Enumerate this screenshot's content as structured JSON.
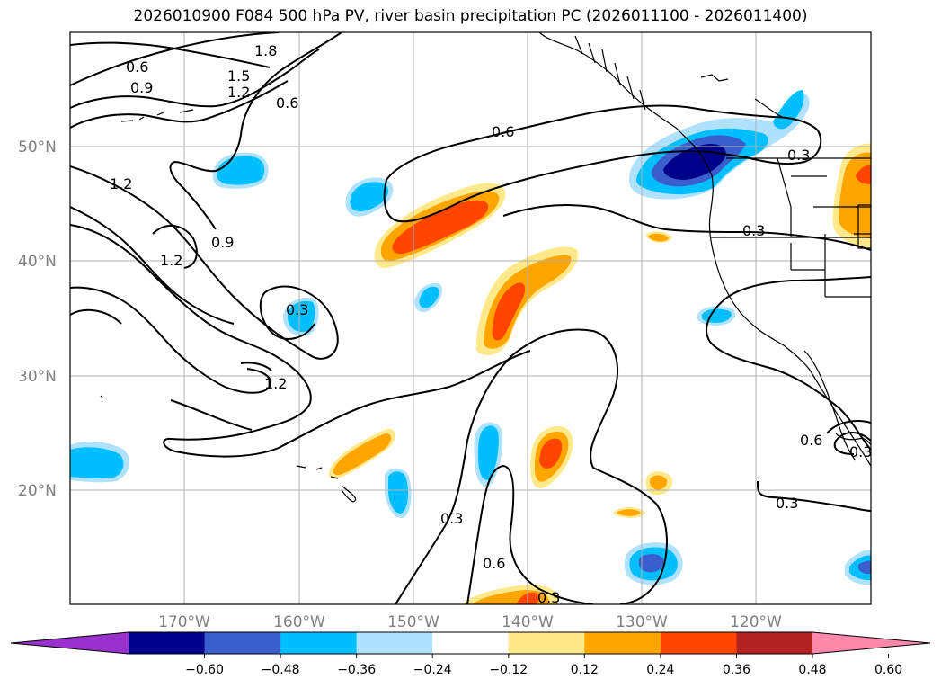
{
  "title": "2026010900 F084 500 hPa PV, river basin precipitation PC (2026011100 - 2026011400)",
  "map": {
    "lon_range": [
      -180,
      -110
    ],
    "lat_range": [
      10,
      60
    ],
    "lat_ticks": [
      {
        "value": 20,
        "label": "20°N"
      },
      {
        "value": 30,
        "label": "30°N"
      },
      {
        "value": 40,
        "label": "40°N"
      },
      {
        "value": 50,
        "label": "50°N"
      }
    ],
    "lon_ticks": [
      {
        "value": -170,
        "label": "170°W"
      },
      {
        "value": -160,
        "label": "160°W"
      },
      {
        "value": -150,
        "label": "150°W"
      },
      {
        "value": -140,
        "label": "140°W"
      },
      {
        "value": -130,
        "label": "130°W"
      },
      {
        "value": -120,
        "label": "120°W"
      }
    ],
    "gridlines": true,
    "contour_labels": [
      "0.6",
      "0.9",
      "1.8",
      "1.5",
      "1.2",
      "0.6",
      "1.2",
      "0.9",
      "1.2",
      "0.3",
      "1.2",
      "0.6",
      "0.3",
      "0.3",
      "0.3",
      "0.6",
      "0.3",
      "0.6",
      "0.3",
      "0.3"
    ]
  },
  "colorbar": {
    "ticks": [
      "−0.60",
      "−0.48",
      "−0.36",
      "−0.24",
      "−0.12",
      "0.12",
      "0.24",
      "0.36",
      "0.48",
      "0.60"
    ],
    "colors": [
      "#9932cc",
      "#00008b",
      "#3a5fcd",
      "#00bfff",
      "#b0e2ff",
      "#ffffff",
      "#ffe98a",
      "#ffa500",
      "#ff4500",
      "#b22222",
      "#ff88aa"
    ]
  }
}
